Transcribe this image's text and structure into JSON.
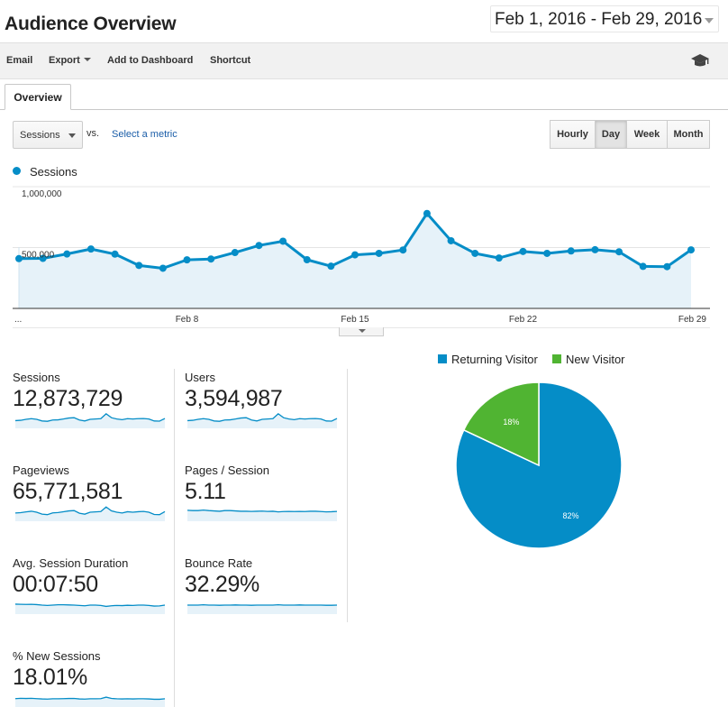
{
  "header": {
    "title": "Audience Overview",
    "date_range": "Feb 1, 2016 - Feb 29, 2016"
  },
  "toolbar": {
    "email": "Email",
    "export": "Export",
    "add_to_dashboard": "Add to Dashboard",
    "shortcut": "Shortcut",
    "icon": "graduation-cap-icon"
  },
  "tabs": [
    {
      "label": "Overview",
      "active": true
    }
  ],
  "controls": {
    "metric": "Sessions",
    "vs": "vs.",
    "select_metric": "Select a metric",
    "granularity": [
      "Hourly",
      "Day",
      "Week",
      "Month"
    ],
    "granularity_active": "Day"
  },
  "chart_data": [
    {
      "type": "area",
      "series": [
        {
          "name": "Sessions",
          "color": "#058dc7",
          "values": [
            409000,
            411000,
            447000,
            488000,
            446000,
            353000,
            330000,
            399000,
            406000,
            459000,
            517000,
            552000,
            400000,
            347000,
            440000,
            452000,
            480000,
            780000,
            556000,
            452000,
            414000,
            468000,
            452000,
            472000,
            482000,
            465000,
            345000,
            343000,
            481000
          ]
        }
      ],
      "x": [
        "Feb 1",
        "Feb 2",
        "Feb 3",
        "Feb 4",
        "Feb 5",
        "Feb 6",
        "Feb 7",
        "Feb 8",
        "Feb 9",
        "Feb 10",
        "Feb 11",
        "Feb 12",
        "Feb 13",
        "Feb 14",
        "Feb 15",
        "Feb 16",
        "Feb 17",
        "Feb 18",
        "Feb 19",
        "Feb 20",
        "Feb 21",
        "Feb 22",
        "Feb 23",
        "Feb 24",
        "Feb 25",
        "Feb 26",
        "Feb 27",
        "Feb 28",
        "Feb 29"
      ],
      "x_tick_labels": [
        "...",
        "Feb 8",
        "Feb 15",
        "Feb 22",
        "Feb 29"
      ],
      "y_tick_labels": [
        "1,000,000",
        "500,000"
      ],
      "ylim": [
        0,
        1000000
      ],
      "grid": true,
      "legend": "top-left"
    },
    {
      "type": "pie",
      "categories": [
        "Returning Visitor",
        "New Visitor"
      ],
      "values": [
        82,
        18
      ],
      "labels": [
        "82%",
        "18%"
      ],
      "colors": [
        "#058dc7",
        "#50b432"
      ],
      "legend": "top"
    }
  ],
  "metrics": [
    {
      "label": "Sessions",
      "value": "12,873,729",
      "spark": [
        0.42,
        0.44,
        0.5,
        0.54,
        0.5,
        0.4,
        0.38,
        0.46,
        0.47,
        0.52,
        0.58,
        0.6,
        0.46,
        0.4,
        0.5,
        0.52,
        0.54,
        0.84,
        0.6,
        0.52,
        0.48,
        0.54,
        0.52,
        0.54,
        0.55,
        0.52,
        0.4,
        0.39,
        0.55
      ]
    },
    {
      "label": "Users",
      "value": "3,594,987",
      "spark": [
        0.42,
        0.44,
        0.5,
        0.54,
        0.5,
        0.4,
        0.38,
        0.46,
        0.47,
        0.52,
        0.58,
        0.6,
        0.46,
        0.4,
        0.5,
        0.52,
        0.54,
        0.84,
        0.6,
        0.52,
        0.48,
        0.54,
        0.52,
        0.54,
        0.55,
        0.52,
        0.4,
        0.39,
        0.55
      ]
    },
    {
      "label": "Pageviews",
      "value": "65,771,581",
      "spark": [
        0.45,
        0.47,
        0.52,
        0.56,
        0.5,
        0.38,
        0.35,
        0.46,
        0.48,
        0.53,
        0.58,
        0.6,
        0.44,
        0.38,
        0.5,
        0.52,
        0.54,
        0.82,
        0.58,
        0.5,
        0.45,
        0.53,
        0.5,
        0.53,
        0.55,
        0.5,
        0.36,
        0.35,
        0.54
      ]
    },
    {
      "label": "Pages / Session",
      "value": "5.11",
      "spark": [
        0.62,
        0.6,
        0.6,
        0.63,
        0.6,
        0.58,
        0.56,
        0.6,
        0.6,
        0.58,
        0.56,
        0.56,
        0.55,
        0.56,
        0.57,
        0.55,
        0.56,
        0.52,
        0.54,
        0.55,
        0.54,
        0.55,
        0.54,
        0.56,
        0.56,
        0.54,
        0.52,
        0.53,
        0.55
      ]
    },
    {
      "label": "Avg. Session Duration",
      "value": "00:07:50",
      "spark": [
        0.56,
        0.55,
        0.54,
        0.55,
        0.53,
        0.5,
        0.48,
        0.5,
        0.52,
        0.52,
        0.51,
        0.5,
        0.48,
        0.46,
        0.5,
        0.5,
        0.48,
        0.42,
        0.46,
        0.48,
        0.47,
        0.49,
        0.48,
        0.5,
        0.5,
        0.48,
        0.44,
        0.45,
        0.5
      ]
    },
    {
      "label": "Bounce Rate",
      "value": "32.29%",
      "spark": [
        0.5,
        0.5,
        0.5,
        0.52,
        0.5,
        0.5,
        0.49,
        0.5,
        0.5,
        0.51,
        0.5,
        0.5,
        0.49,
        0.5,
        0.5,
        0.5,
        0.5,
        0.52,
        0.5,
        0.5,
        0.5,
        0.51,
        0.5,
        0.5,
        0.5,
        0.5,
        0.49,
        0.49,
        0.5
      ]
    },
    {
      "label": "% New Sessions",
      "value": "18.01%",
      "spark": [
        0.46,
        0.48,
        0.47,
        0.48,
        0.46,
        0.44,
        0.43,
        0.45,
        0.45,
        0.46,
        0.47,
        0.47,
        0.44,
        0.43,
        0.45,
        0.45,
        0.46,
        0.55,
        0.47,
        0.45,
        0.44,
        0.45,
        0.44,
        0.45,
        0.45,
        0.44,
        0.42,
        0.42,
        0.45
      ]
    }
  ]
}
